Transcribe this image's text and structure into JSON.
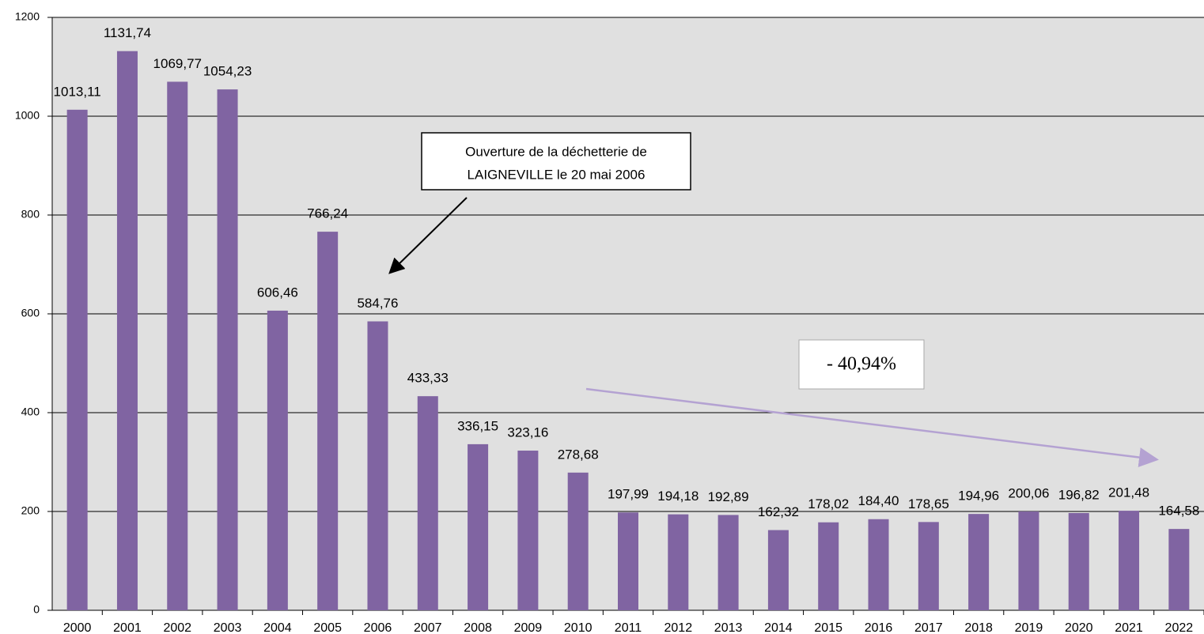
{
  "chart_data": {
    "type": "bar",
    "categories": [
      "2000",
      "2001",
      "2002",
      "2003",
      "2004",
      "2005",
      "2006",
      "2007",
      "2008",
      "2009",
      "2010",
      "2011",
      "2012",
      "2013",
      "2014",
      "2015",
      "2016",
      "2017",
      "2018",
      "2019",
      "2020",
      "2021",
      "2022"
    ],
    "values": [
      1013.11,
      1131.74,
      1069.77,
      1054.23,
      606.46,
      766.24,
      584.76,
      433.33,
      336.15,
      323.16,
      278.68,
      197.99,
      194.18,
      192.89,
      162.32,
      178.02,
      184.4,
      178.65,
      194.96,
      200.06,
      196.82,
      201.48,
      164.58
    ],
    "value_labels": [
      "1013,11",
      "1131,74",
      "1069,77",
      "1054,23",
      "606,46",
      "766,24",
      "584,76",
      "433,33",
      "336,15",
      "323,16",
      "278,68",
      "197,99",
      "194,18",
      "192,89",
      "162,32",
      "178,02",
      "184,40",
      "178,65",
      "194,96",
      "200,06",
      "196,82",
      "201,48",
      "164,58"
    ],
    "color": "#8064a2",
    "ylim": [
      0,
      1200
    ],
    "yticks": [
      0,
      200,
      400,
      600,
      800,
      1000,
      1200
    ],
    "grid": true,
    "annotations": [
      [
        "Ouverture de la déchetterie de",
        "LAIGNEVILLE le 20 mai 2006"
      ],
      "- 40,94%"
    ]
  }
}
